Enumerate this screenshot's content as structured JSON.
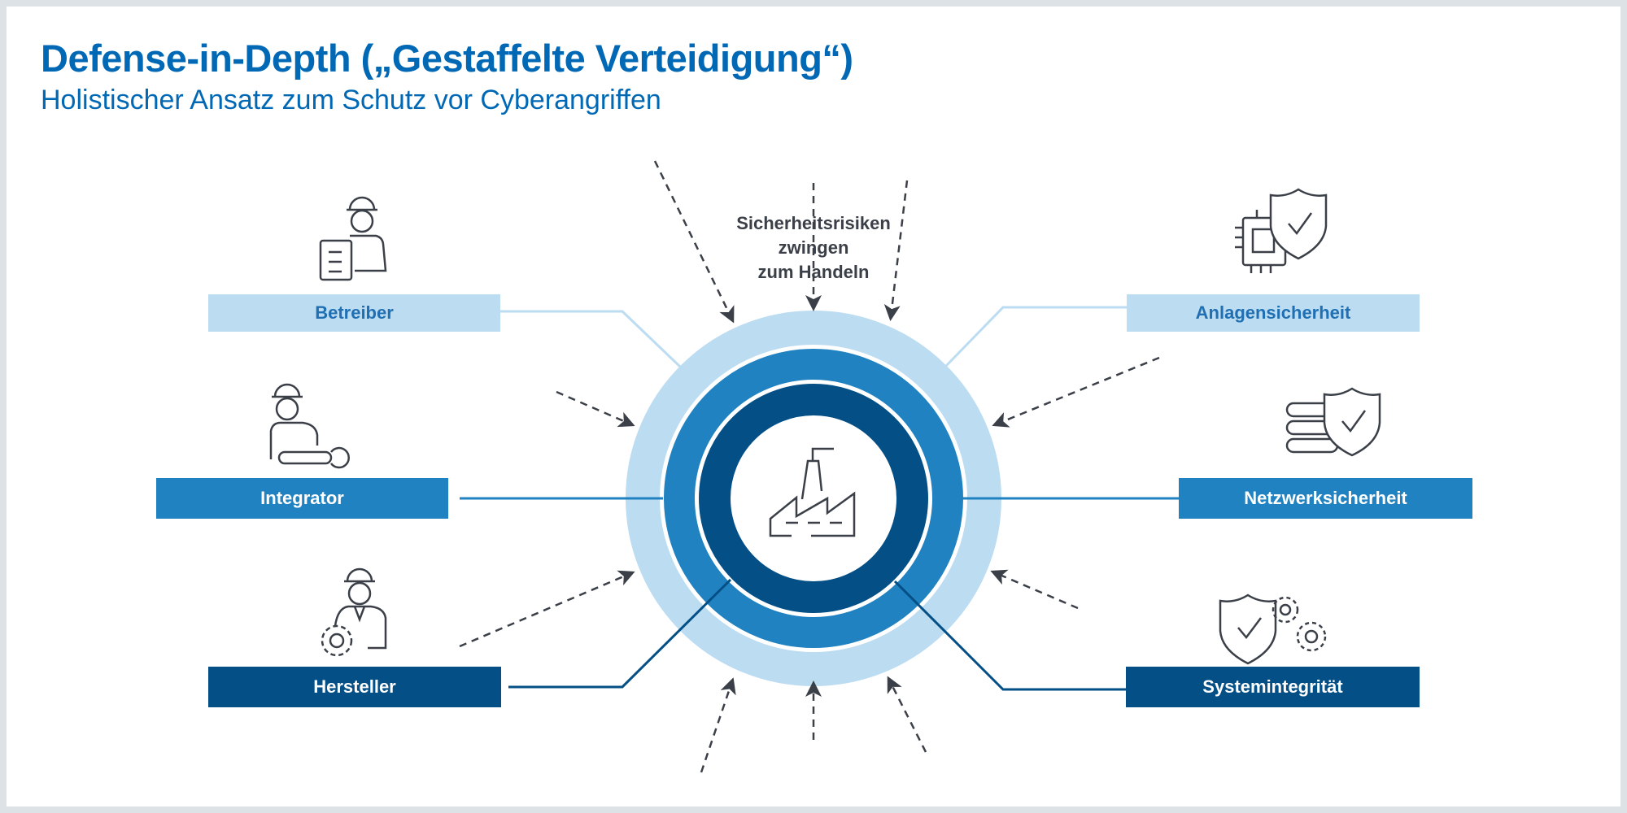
{
  "title": "Defense-in-Depth („Gestaffelte Verteidigung“)",
  "subtitle": "Holistischer Ansatz zum Schutz vor Cyberangriffen",
  "center": {
    "text_lines": [
      "Sicherheitsrisiken",
      "zwingen",
      "zum Handeln"
    ],
    "icon": "factory-icon"
  },
  "left": [
    {
      "label": "Betreiber",
      "icon": "worker-clipboard-icon"
    },
    {
      "label": "Integrator",
      "icon": "worker-wrench-icon"
    },
    {
      "label": "Hersteller",
      "icon": "worker-gear-icon"
    }
  ],
  "right": [
    {
      "label": "Anlagensicherheit",
      "icon": "chip-shield-icon"
    },
    {
      "label": "Netzwerksicherheit",
      "icon": "server-shield-icon"
    },
    {
      "label": "Systemintegrität",
      "icon": "shield-gears-icon"
    }
  ],
  "colors": {
    "light": "#bcdcf2",
    "mid": "#2182c1",
    "dark": "#034f86",
    "title": "#0068b4",
    "arrow": "#3a3f48"
  }
}
